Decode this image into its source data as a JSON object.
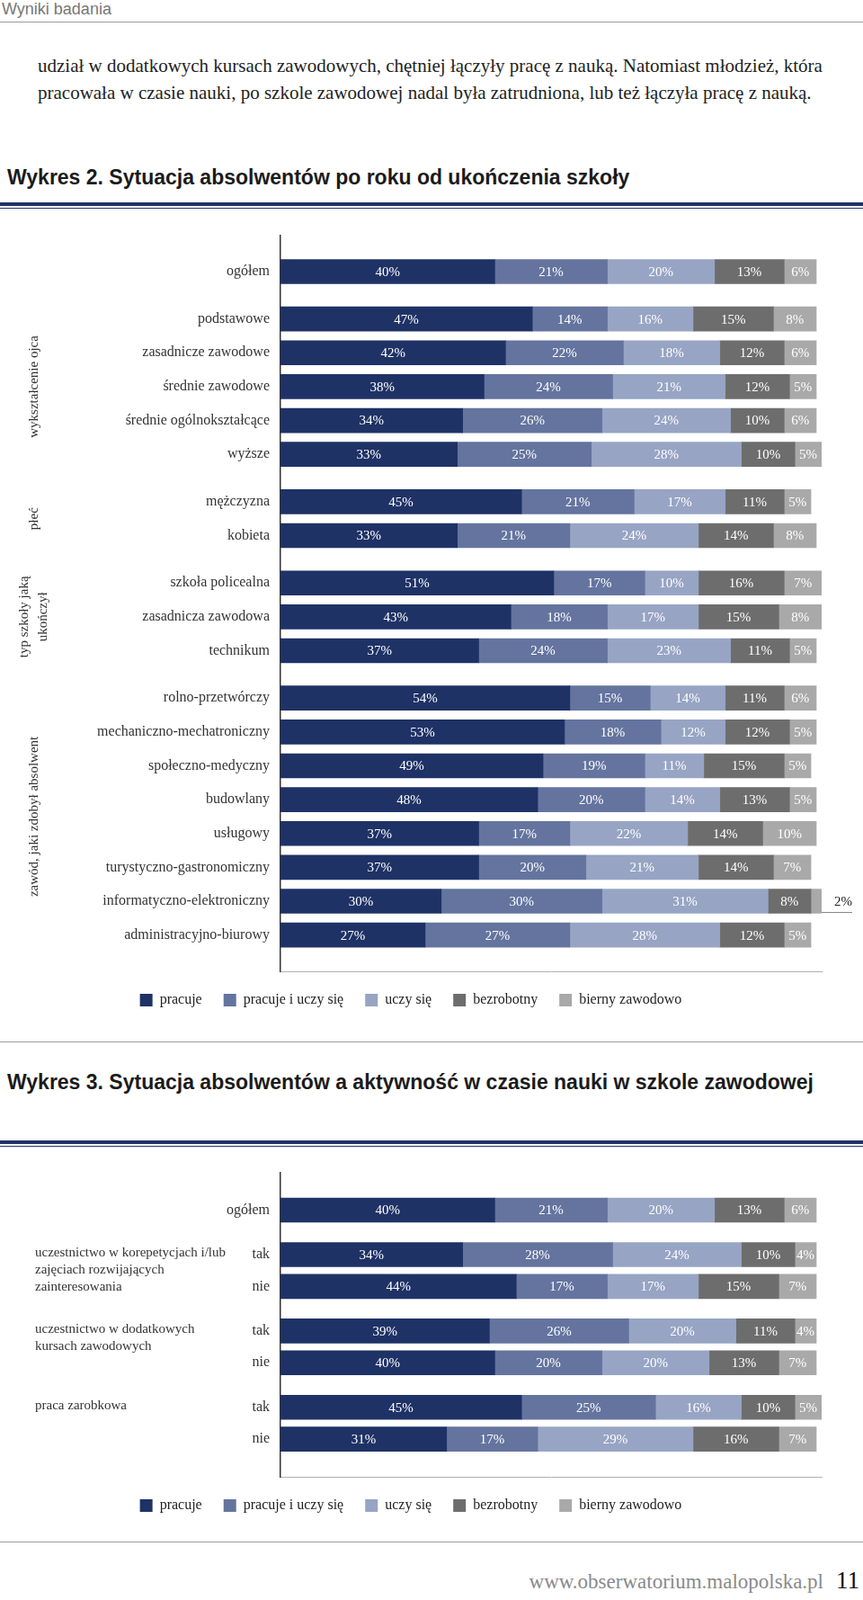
{
  "header": "Wyniki badania",
  "paragraph": "udział w dodatkowych kursach zawodowych, chętniej łączyły pracę z nauką. Natomiast młodzież, która pracowała w czasie nauki, po szkole zawodowej nadal była zatrudniona, lub też łączyła pracę z nauką.",
  "chart_data": [
    {
      "type": "bar",
      "title": "Wykres 2. Sytuacja absolwentów po roku od ukończenia szkoły",
      "orientation": "horizontal",
      "stacked": true,
      "data_labels": true,
      "tick_labels": "y",
      "legend": "bottom",
      "grid": false,
      "xlim": [
        0,
        101
      ],
      "groups": [
        {
          "categories": [
            "ogółem"
          ]
        },
        {
          "label": "wykształcenie ojca",
          "categories": [
            "podstawowe",
            "zasadnicze zawodowe",
            "średnie zawodowe",
            "średnie ogólnokształcące",
            "wyższe"
          ]
        },
        {
          "label": "płeć",
          "categories": [
            "mężczyzna",
            "kobieta"
          ]
        },
        {
          "label": "typ szkoły jaką ukończył",
          "categories": [
            "szkoła policealna",
            "zasadnicza zawodowa",
            "technikum"
          ]
        },
        {
          "label": "zawód, jaki zdobył absolwent",
          "categories": [
            "rolno-przetwórczy",
            "mechaniczno-mechatroniczny",
            "społeczno-medyczny",
            "budowlany",
            "usługowy",
            "turystyczno-gastronomiczny",
            "informatyczno-elektroniczny",
            "administracyjno-biurowy"
          ]
        }
      ],
      "series": [
        {
          "name": "pracuje",
          "color": "#1f3266",
          "values": [
            40,
            47,
            42,
            38,
            34,
            33,
            45,
            33,
            51,
            43,
            37,
            54,
            53,
            49,
            48,
            37,
            37,
            30,
            27
          ],
          "value_labels": [
            "40%",
            "47%",
            "42%",
            "38%",
            "34%",
            "33%",
            "45%",
            "33%",
            "51%",
            "43%",
            "37%",
            "54%",
            "53%",
            "49%",
            "48%",
            "37%",
            "37%",
            "30%",
            "27%"
          ]
        },
        {
          "name": "pracuje i uczy się",
          "color": "#64749f",
          "values": [
            21,
            14,
            22,
            24,
            26,
            25,
            21,
            21,
            17,
            18,
            24,
            15,
            18,
            19,
            20,
            17,
            20,
            30,
            27
          ],
          "value_labels": [
            "21%",
            "14%",
            "22%",
            "24%",
            "26%",
            "25%",
            "21%",
            "21%",
            "17%",
            "18%",
            "24%",
            "15%",
            "18%",
            "19%",
            "20%",
            "17%",
            "20%",
            "30%",
            "27%"
          ]
        },
        {
          "name": "uczy się",
          "color": "#97a4c4",
          "values": [
            20,
            16,
            18,
            21,
            24,
            28,
            17,
            24,
            10,
            17,
            23,
            14,
            12,
            11,
            14,
            22,
            21,
            31,
            28
          ],
          "value_labels": [
            "20%",
            "16%",
            "18%",
            "21%",
            "24%",
            "28%",
            "17%",
            "24%",
            "10%",
            "17%",
            "23%",
            "14%",
            "12%",
            "11%",
            "14%",
            "22%",
            "21%",
            "31%",
            "28%"
          ]
        },
        {
          "name": "bezrobotny",
          "color": "#6d6d6d",
          "values": [
            13,
            15,
            12,
            12,
            10,
            10,
            11,
            14,
            16,
            15,
            11,
            11,
            12,
            15,
            13,
            14,
            14,
            8,
            12
          ],
          "value_labels": [
            "13%",
            "15%",
            "12%",
            "12%",
            "10%",
            "10%",
            "11%",
            "14%",
            "16%",
            "15%",
            "11%",
            "11%",
            "12%",
            "15%",
            "13%",
            "14%",
            "14%",
            "8%",
            "12%"
          ]
        },
        {
          "name": "bierny zawodowo",
          "color": "#a9a9a9",
          "values": [
            6,
            8,
            6,
            5,
            6,
            5,
            5,
            8,
            7,
            8,
            5,
            6,
            5,
            5,
            5,
            10,
            7,
            2,
            5
          ],
          "value_labels": [
            "6%",
            "8%",
            "6%",
            "5%",
            "6%",
            "5%",
            "5%",
            "8%",
            "7%",
            "8%",
            "5%",
            "6%",
            "5%",
            "5%",
            "5%",
            "10%",
            "7%",
            "2%",
            "5%"
          ]
        }
      ]
    },
    {
      "type": "bar",
      "title": "Wykres 3. Sytuacja absolwentów a aktywność w czasie nauki w szkole zawodowej",
      "orientation": "horizontal",
      "stacked": true,
      "data_labels": true,
      "tick_labels": "y",
      "legend": "bottom",
      "grid": false,
      "xlim": [
        0,
        101
      ],
      "groups": [
        {
          "categories": [
            "ogółem"
          ]
        },
        {
          "label": "uczestnictwo w korepetycjach i/lub zajęciach rozwijających zainteresowania",
          "categories": [
            "tak",
            "nie"
          ]
        },
        {
          "label": "uczestnictwo w dodatkowych kursach zawodowych",
          "categories": [
            "tak",
            "nie"
          ]
        },
        {
          "label": "praca zarobkowa",
          "categories": [
            "tak",
            "nie"
          ]
        }
      ],
      "series": [
        {
          "name": "pracuje",
          "color": "#1f3266",
          "values": [
            40,
            34,
            44,
            39,
            40,
            45,
            31
          ],
          "value_labels": [
            "40%",
            "34%",
            "44%",
            "39%",
            "40%",
            "45%",
            "31%"
          ]
        },
        {
          "name": "pracuje i uczy się",
          "color": "#64749f",
          "values": [
            21,
            28,
            17,
            26,
            20,
            25,
            17
          ],
          "value_labels": [
            "21%",
            "28%",
            "17%",
            "26%",
            "20%",
            "25%",
            "17%"
          ]
        },
        {
          "name": "uczy się",
          "color": "#97a4c4",
          "values": [
            20,
            24,
            17,
            20,
            20,
            16,
            29
          ],
          "value_labels": [
            "20%",
            "24%",
            "17%",
            "20%",
            "20%",
            "16%",
            "29%"
          ]
        },
        {
          "name": "bezrobotny",
          "color": "#6d6d6d",
          "values": [
            13,
            10,
            15,
            11,
            13,
            10,
            16
          ],
          "value_labels": [
            "13%",
            "10%",
            "15%",
            "11%",
            "13%",
            "10%",
            "16%"
          ]
        },
        {
          "name": "bierny zawodowo",
          "color": "#a9a9a9",
          "values": [
            6,
            4,
            7,
            4,
            7,
            5,
            7
          ],
          "value_labels": [
            "6%",
            "4%",
            "7%",
            "4%",
            "7%",
            "5%",
            "7%"
          ]
        }
      ]
    }
  ],
  "footer": {
    "url": "www.obserwatorium.malopolska.pl",
    "page": 11
  }
}
